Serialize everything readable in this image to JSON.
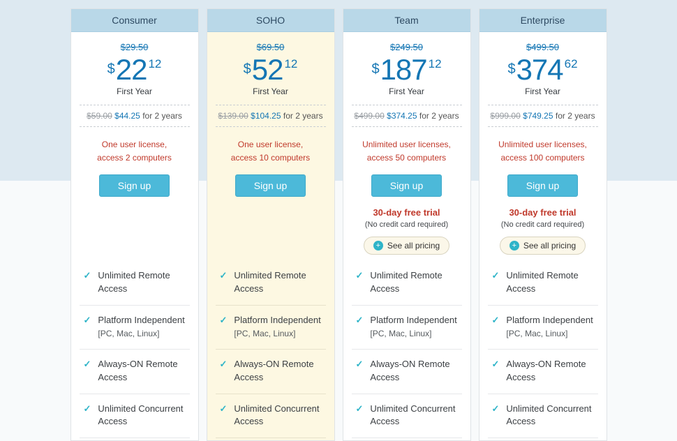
{
  "colors": {
    "accent_blue": "#1476b4",
    "header_blue": "#b9d8e8",
    "button_teal": "#4cb9d9",
    "check_teal": "#2eb4c8",
    "alert_red": "#c0392b",
    "highlight_yellow": "#fdf8e2"
  },
  "icons": {
    "check": "✓",
    "plus": "+"
  },
  "features": [
    {
      "label": "Unlimited Remote Access",
      "sublabel": ""
    },
    {
      "label": "Platform Independent",
      "sublabel": "[PC, Mac, Linux]"
    },
    {
      "label": "Always-ON Remote Access",
      "sublabel": ""
    },
    {
      "label": "Unlimited Concurrent Access",
      "sublabel": ""
    }
  ],
  "plans": [
    {
      "name": "Consumer",
      "currency": "$",
      "old_price": "$29.50",
      "price_dollars": "22",
      "price_cents": "12",
      "price_label": "First Year",
      "two_year_old": "$59.00",
      "two_year_new": "$44.25",
      "two_year_suffix": "for 2 years",
      "license_line1": "One user license,",
      "license_line2": "access 2 computers",
      "signup_label": "Sign up"
    },
    {
      "name": "SOHO",
      "currency": "$",
      "old_price": "$69.50",
      "price_dollars": "52",
      "price_cents": "12",
      "price_label": "First Year",
      "two_year_old": "$139.00",
      "two_year_new": "$104.25",
      "two_year_suffix": "for 2 years",
      "license_line1": "One user license,",
      "license_line2": "access 10 computers",
      "signup_label": "Sign up"
    },
    {
      "name": "Team",
      "currency": "$",
      "old_price": "$249.50",
      "price_dollars": "187",
      "price_cents": "12",
      "price_label": "First Year",
      "two_year_old": "$499.00",
      "two_year_new": "$374.25",
      "two_year_suffix": "for 2 years",
      "license_line1": "Unlimited user licenses,",
      "license_line2": "access 50 computers",
      "signup_label": "Sign up",
      "trial_title": "30-day free trial",
      "trial_note": "(No credit card required)",
      "pricing_button_label": "See all pricing"
    },
    {
      "name": "Enterprise",
      "currency": "$",
      "old_price": "$499.50",
      "price_dollars": "374",
      "price_cents": "62",
      "price_label": "First Year",
      "two_year_old": "$999.00",
      "two_year_new": "$749.25",
      "two_year_suffix": "for 2 years",
      "license_line1": "Unlimited user licenses,",
      "license_line2": "access 100 computers",
      "signup_label": "Sign up",
      "trial_title": "30-day free trial",
      "trial_note": "(No credit card required)",
      "pricing_button_label": "See all pricing"
    }
  ]
}
